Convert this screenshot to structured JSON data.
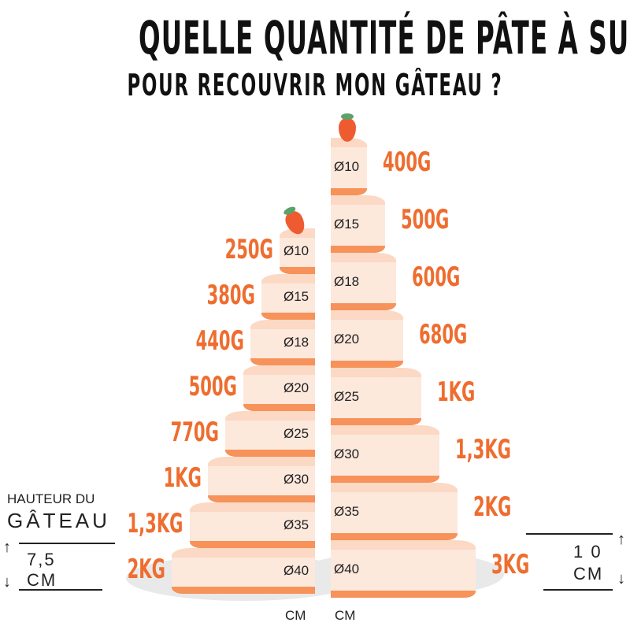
{
  "title": {
    "line1": "QUELLE QUANTITÉ DE PÂTE À SUCRE",
    "line2": "POUR RECOUVRIR MON GÂTEAU ?"
  },
  "colors": {
    "accent": "#ee6d2f",
    "cake": "#fde8dc",
    "band": "#f6925a",
    "text": "#222222"
  },
  "left_cake": {
    "height_label_line1": "HAUTEUR DU",
    "height_label_line2": "GÂTEAU",
    "height_value": "7,5",
    "height_unit": "CM",
    "unit": "CM",
    "tiers": [
      {
        "diameter": "Ø10",
        "d": 10,
        "weight": "250G"
      },
      {
        "diameter": "Ø15",
        "d": 15,
        "weight": "380G"
      },
      {
        "diameter": "Ø18",
        "d": 18,
        "weight": "440G"
      },
      {
        "diameter": "Ø20",
        "d": 20,
        "weight": "500G"
      },
      {
        "diameter": "Ø25",
        "d": 25,
        "weight": "770G"
      },
      {
        "diameter": "Ø30",
        "d": 30,
        "weight": "1KG"
      },
      {
        "diameter": "Ø35",
        "d": 35,
        "weight": "1,3KG"
      },
      {
        "diameter": "Ø40",
        "d": 40,
        "weight": "2KG"
      }
    ]
  },
  "right_cake": {
    "height_value": "1 0",
    "height_unit": "CM",
    "unit": "CM",
    "tiers": [
      {
        "diameter": "Ø10",
        "d": 10,
        "weight": "400G"
      },
      {
        "diameter": "Ø15",
        "d": 15,
        "weight": "500G"
      },
      {
        "diameter": "Ø18",
        "d": 18,
        "weight": "600G"
      },
      {
        "diameter": "Ø20",
        "d": 20,
        "weight": "680G"
      },
      {
        "diameter": "Ø25",
        "d": 25,
        "weight": "1KG"
      },
      {
        "diameter": "Ø30",
        "d": 30,
        "weight": "1,3KG"
      },
      {
        "diameter": "Ø35",
        "d": 35,
        "weight": "2KG"
      },
      {
        "diameter": "Ø40",
        "d": 40,
        "weight": "3KG"
      }
    ]
  }
}
